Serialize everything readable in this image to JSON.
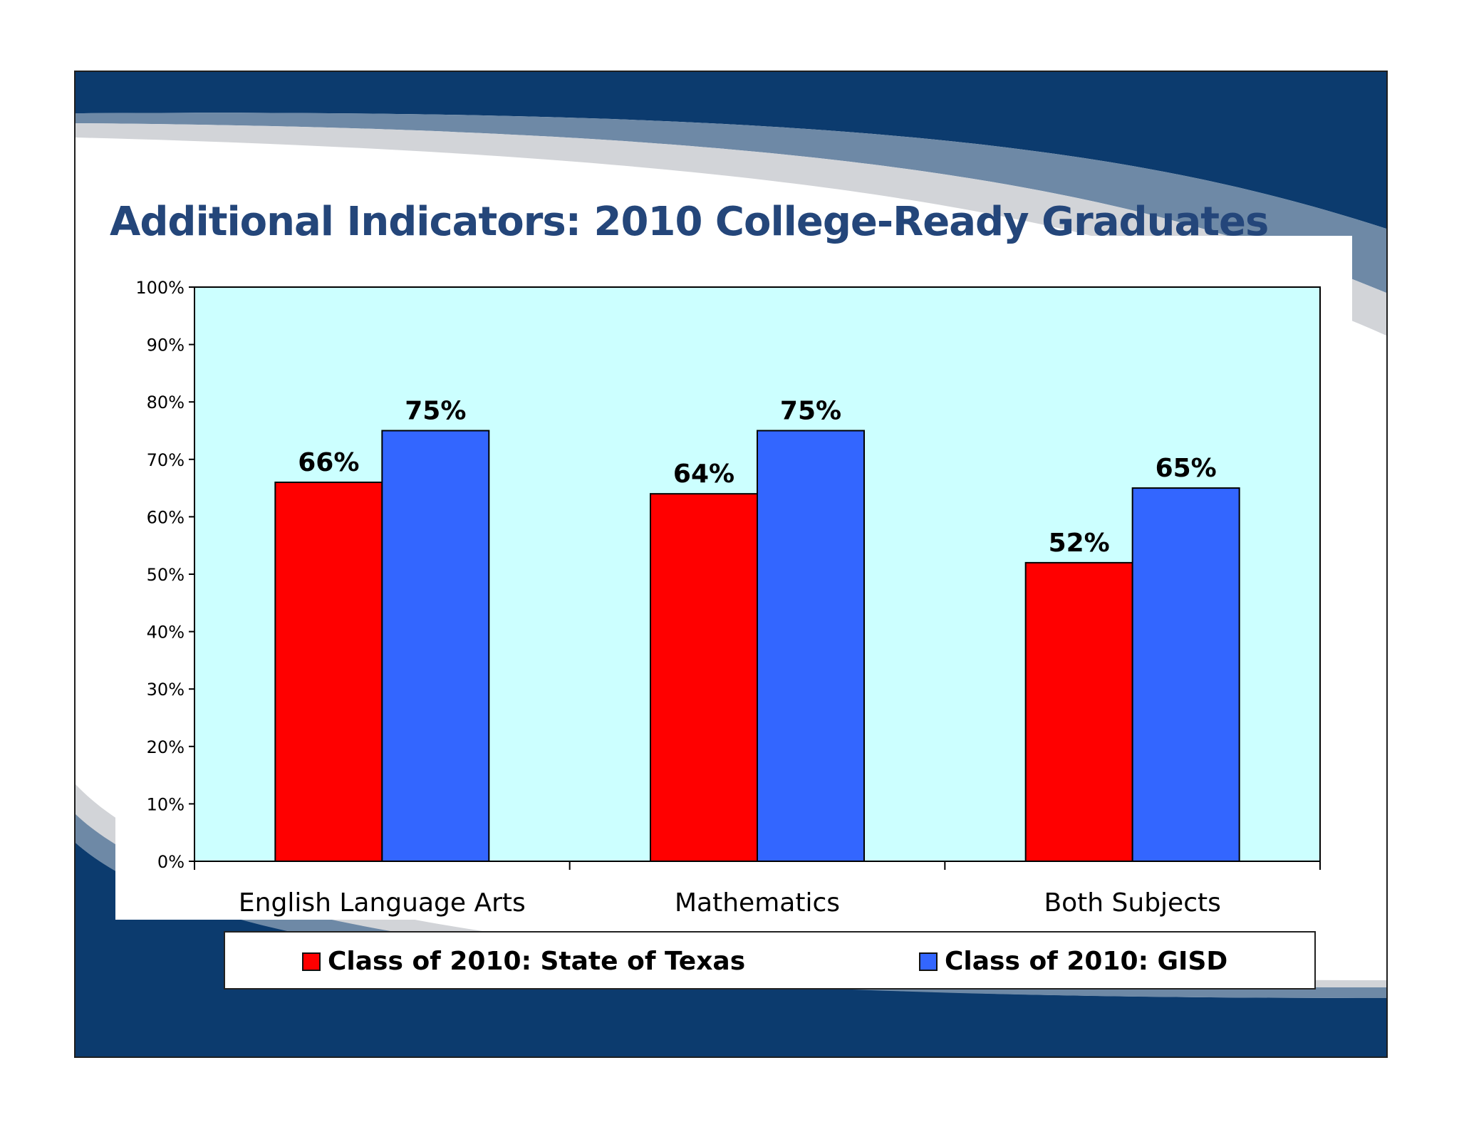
{
  "slide": {
    "title": "Additional Indicators: 2010 College-Ready Graduates",
    "colors": {
      "frame_dark": "#0c3b6e",
      "frame_mid": "#6e89a6",
      "frame_light": "#d2d4d8",
      "title": "#24467a"
    }
  },
  "chart_data": {
    "type": "bar",
    "title": "",
    "xlabel": "",
    "ylabel": "",
    "categories": [
      "English Language Arts",
      "Mathematics",
      "Both Subjects"
    ],
    "series": [
      {
        "name": "Class of 2010: State of Texas",
        "color": "#ff0000",
        "values": [
          66,
          64,
          52
        ]
      },
      {
        "name": "Class of 2010: GISD",
        "color": "#3366ff",
        "values": [
          75,
          75,
          65
        ]
      }
    ],
    "data_labels": [
      [
        "66%",
        "64%",
        "52%"
      ],
      [
        "75%",
        "75%",
        "65%"
      ]
    ],
    "ylim": [
      0,
      100
    ],
    "y_ticks": [
      "0%",
      "10%",
      "20%",
      "30%",
      "40%",
      "50%",
      "60%",
      "70%",
      "80%",
      "90%",
      "100%"
    ],
    "plot_background": "#ccffff",
    "grid": false,
    "legend_position": "bottom"
  }
}
